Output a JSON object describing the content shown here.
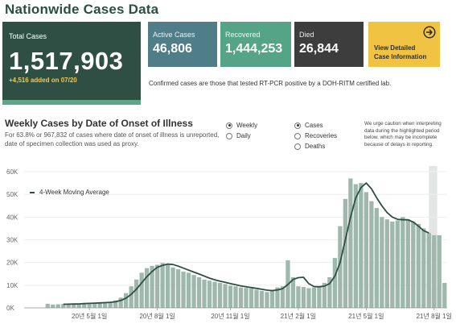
{
  "title": "Nationwide Cases Data",
  "total": {
    "label": "Total Cases",
    "value": "1,517,903",
    "added": "+4,516 added on 07/20"
  },
  "active": {
    "label": "Active Cases",
    "value": "46,806"
  },
  "recovered": {
    "label": "Recovered",
    "value": "1,444,253"
  },
  "died": {
    "label": "Died",
    "value": "26,844"
  },
  "view_detail": {
    "line1": "View Detailed",
    "line2": "Case Information",
    "icon": "arrow-right-circle-icon"
  },
  "note": "Confirmed cases are those that tested RT-PCR positive by a DOH-RITM certified lab.",
  "chart_section": {
    "title": "Weekly Cases by Date of Onset of Illness",
    "subtitle": "For 63.8% or 967,832 of cases where date of onset of illness is unreported, date of specimen collection was used as proxy.",
    "period_options": [
      {
        "label": "Weekly",
        "selected": true
      },
      {
        "label": "Daily",
        "selected": false
      }
    ],
    "metric_options": [
      {
        "label": "Cases",
        "selected": true
      },
      {
        "label": "Recoveries",
        "selected": false
      },
      {
        "label": "Deaths",
        "selected": false
      }
    ],
    "caution": "We urge caution when interpreting data during the highlighted period below, which may be incomplete because of delays in reporting.",
    "legend": "4-Week Moving Average"
  },
  "colors": {
    "dark": "#2f4f45",
    "bar": "#9fb8ad",
    "highlight": "#e4e6e5"
  },
  "chart_data": {
    "type": "bar",
    "ylim": [
      0,
      60000
    ],
    "y_ticks": [
      0,
      10000,
      20000,
      30000,
      40000,
      50000,
      60000
    ],
    "y_tick_labels": [
      "0K",
      "10K",
      "20K",
      "30K",
      "40K",
      "50K",
      "60K"
    ],
    "x_tick_labels": [
      "20년 5월 1일",
      "20년 8월 1일",
      "20년 11월 1일",
      "21년 2월 1일",
      "21년 5월 1일",
      "21년 8월 1일"
    ],
    "x_tick_indices": [
      8,
      21,
      35,
      48,
      61,
      74
    ],
    "highlight_from_index": 73,
    "series": [
      {
        "values": [
          1800,
          1500,
          1600,
          1700,
          1600,
          1800,
          1900,
          2200,
          2000,
          2300,
          2300,
          2500,
          2700,
          3300,
          4500,
          6500,
          9500,
          12500,
          15500,
          17500,
          18500,
          19000,
          19800,
          19000,
          17800,
          17000,
          16000,
          15500,
          14500,
          13500,
          12500,
          12000,
          11500,
          11000,
          10500,
          9800,
          9500,
          9000,
          8800,
          8500,
          8000,
          7500,
          7000,
          8000,
          9000,
          9500,
          21000,
          13500,
          9500,
          9200,
          8700,
          9000,
          9500,
          11000,
          13500,
          22000,
          36000,
          48000,
          57000,
          54500,
          55000,
          51000,
          47000,
          44000,
          40000,
          39000,
          38000,
          38500,
          40000,
          39000,
          38000,
          37000,
          35000,
          33000,
          32000,
          32000,
          11000
        ],
        "moving_average": [
          null,
          null,
          null,
          1600,
          1650,
          1700,
          1750,
          1880,
          1980,
          2100,
          2200,
          2300,
          2450,
          2700,
          3250,
          4250,
          5950,
          8250,
          11000,
          13750,
          16000,
          17900,
          18700,
          19300,
          19100,
          18400,
          17500,
          16600,
          15750,
          14900,
          14000,
          13100,
          12400,
          11750,
          11250,
          10700,
          10200,
          9700,
          9300,
          8950,
          8600,
          8200,
          7800,
          7600,
          7900,
          8500,
          10300,
          12500,
          13300,
          13500,
          10700,
          9400,
          9300,
          9600,
          10700,
          14000,
          20000,
          30000,
          40000,
          48500,
          53000,
          55000,
          52500,
          48500,
          45000,
          42000,
          40000,
          39000,
          38800,
          38800,
          37800,
          36000,
          34000,
          33000,
          null,
          null,
          null
        ]
      }
    ]
  }
}
